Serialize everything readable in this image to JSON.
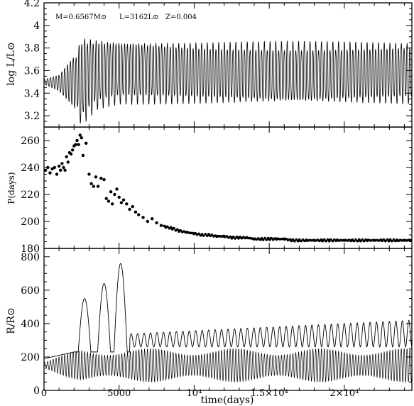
{
  "chart_data": [
    {
      "type": "line",
      "panel": "top",
      "ylabel": "log L/L⊙",
      "annotation": {
        "mass": "M=0.6567M⊙",
        "luminosity": "L=3162L⊙",
        "metallicity": "Z=0.004"
      },
      "xlim": [
        0,
        24500
      ],
      "ylim": [
        3.1,
        4.2
      ],
      "ytick_labels": [
        "3.2",
        "3.4",
        "3.6",
        "3.8",
        "4",
        "4.2"
      ],
      "yticks": [
        3.2,
        3.4,
        3.6,
        3.8,
        4.0,
        4.2
      ],
      "series": [
        {
          "description_points": [
            [
              0,
              3.5
            ],
            [
              1500,
              3.5
            ],
            [
              2500,
              3.5
            ],
            [
              3000,
              3.5
            ],
            [
              5000,
              3.5
            ],
            [
              24500,
              3.5
            ]
          ],
          "envelope_max": [
            [
              0,
              3.52
            ],
            [
              1000,
              3.56
            ],
            [
              2000,
              3.72
            ],
            [
              2500,
              3.92
            ],
            [
              3500,
              3.9
            ],
            [
              5000,
              3.88
            ],
            [
              10000,
              3.86
            ],
            [
              24500,
              3.86
            ]
          ],
          "envelope_min": [
            [
              0,
              3.48
            ],
            [
              1000,
              3.42
            ],
            [
              2000,
              3.28
            ],
            [
              2500,
              3.1
            ],
            [
              3500,
              3.25
            ],
            [
              5000,
              3.3
            ],
            [
              10000,
              3.3
            ],
            [
              24500,
              3.3
            ]
          ],
          "period_days": 190
        }
      ]
    },
    {
      "type": "scatter",
      "panel": "middle",
      "ylabel": "P(days)",
      "xlim": [
        0,
        24500
      ],
      "ylim": [
        180,
        270
      ],
      "ytick_labels": [
        "180",
        "200",
        "220",
        "240",
        "260"
      ],
      "yticks": [
        180,
        200,
        220,
        240,
        260
      ],
      "series": [
        {
          "x": [
            100,
            250,
            400,
            550,
            700,
            850,
            1000,
            1100,
            1200,
            1300,
            1400,
            1500,
            1600,
            1700,
            1800,
            1900,
            2000,
            2100,
            2200,
            2300,
            2400,
            2500,
            2600,
            2800,
            3000,
            3150,
            3300,
            3450,
            3600,
            3800,
            4000,
            4150,
            4300,
            4450,
            4550,
            4700,
            4850,
            5000,
            5150,
            5300,
            5500,
            5700,
            5900,
            6100,
            6300,
            6600,
            6900,
            7200,
            7500,
            7800,
            8100,
            8500,
            9000,
            9500,
            10000,
            10500,
            11000,
            11500,
            12000,
            12500,
            13000,
            13500,
            14000,
            14500,
            15000,
            15500,
            16000,
            16500,
            17000,
            17500,
            18000,
            18500,
            19000,
            19500,
            20000,
            20500,
            21000,
            21500,
            22000,
            22500,
            23000,
            23500,
            24000,
            24400
          ],
          "y": [
            238,
            240,
            236,
            239,
            240,
            235,
            241,
            238,
            243,
            240,
            238,
            248,
            244,
            251,
            250,
            253,
            256,
            257,
            260,
            257,
            264,
            262,
            249,
            258,
            235,
            228,
            226,
            233,
            226,
            232,
            231,
            217,
            215,
            222,
            213,
            220,
            224,
            218,
            214,
            216,
            213,
            209,
            211,
            207,
            205,
            203,
            200,
            202,
            199,
            197,
            196,
            195,
            193,
            192,
            191,
            190,
            190,
            189,
            189,
            188,
            188,
            188,
            187,
            187,
            187,
            187,
            187,
            186,
            186,
            186,
            186,
            186,
            186,
            186,
            186,
            186,
            186,
            186,
            186,
            186,
            186,
            186,
            186,
            186
          ]
        }
      ]
    },
    {
      "type": "line",
      "panel": "bottom",
      "ylabel": "R/R⊙",
      "xlabel": "time(days)",
      "xlim": [
        0,
        24500
      ],
      "ylim": [
        0,
        850
      ],
      "ytick_labels": [
        "0",
        "200",
        "400",
        "600",
        "800"
      ],
      "yticks": [
        0,
        200,
        400,
        600,
        800
      ],
      "xtick_labels": [
        "0",
        "5000",
        "10⁴",
        "1.5×10⁴",
        "2×10⁴"
      ],
      "xticks": [
        0,
        5000,
        10000,
        15000,
        20000
      ],
      "series": [
        {
          "name": "",
          "bumps": [
            [
              2700,
              550
            ],
            [
              4000,
              640
            ],
            [
              5100,
              760
            ]
          ],
          "baseline": 150,
          "outer_envelope_after": [
            [
              6000,
              340
            ],
            [
              24500,
              420
            ]
          ]
        }
      ]
    }
  ]
}
